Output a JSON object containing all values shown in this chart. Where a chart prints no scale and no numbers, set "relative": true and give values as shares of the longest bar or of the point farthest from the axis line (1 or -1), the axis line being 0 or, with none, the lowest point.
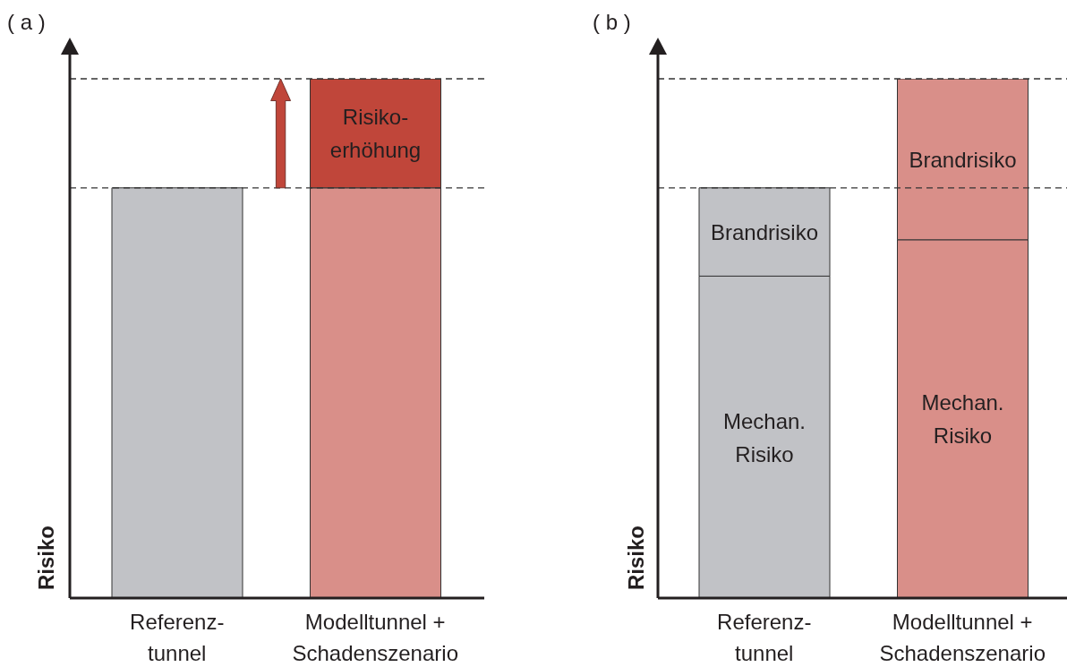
{
  "chart_data": [
    {
      "type": "bar",
      "title": "( a )",
      "ylabel": "Risiko",
      "categories": [
        "Referenz-\ntunnel",
        "Modelltunnel +\nSchadenszenario"
      ],
      "stacked": true,
      "relative": true,
      "series": [
        {
          "values": [
            0.79,
            0.79
          ],
          "colors": [
            "#c1c2c6",
            "#d98f89"
          ]
        },
        {
          "name": "Risiko-\nerhöhung",
          "values": [
            null,
            0.21
          ],
          "color": "#c0463a"
        }
      ],
      "ref_lines": [
        {
          "axis": "y",
          "value": 0.79,
          "line_style": "dashed",
          "color": "#333333"
        },
        {
          "axis": "y",
          "value": 1,
          "line_style": "dashed",
          "color": "#333333"
        }
      ]
    },
    {
      "type": "bar",
      "title": "( b )",
      "ylabel": "Risiko",
      "categories": [
        "Referenz-\ntunnel",
        "Modelltunnel +\nSchadenszenario"
      ],
      "stacked": true,
      "relative": true,
      "series": [
        {
          "name": "Mechan.\nRisiko",
          "values": [
            0.62,
            0.69
          ],
          "colors": [
            "#c1c2c6",
            "#d98f89"
          ]
        },
        {
          "name": "Brandrisiko",
          "values": [
            0.17,
            0.31
          ],
          "colors": [
            "#c1c2c6",
            "#d98f89"
          ]
        }
      ],
      "ref_lines": [
        {
          "axis": "y",
          "value": 0.79,
          "line_style": "dashed",
          "color": "#333333"
        },
        {
          "axis": "y",
          "value": 1,
          "line_style": "dashed",
          "color": "#333333"
        }
      ]
    }
  ]
}
